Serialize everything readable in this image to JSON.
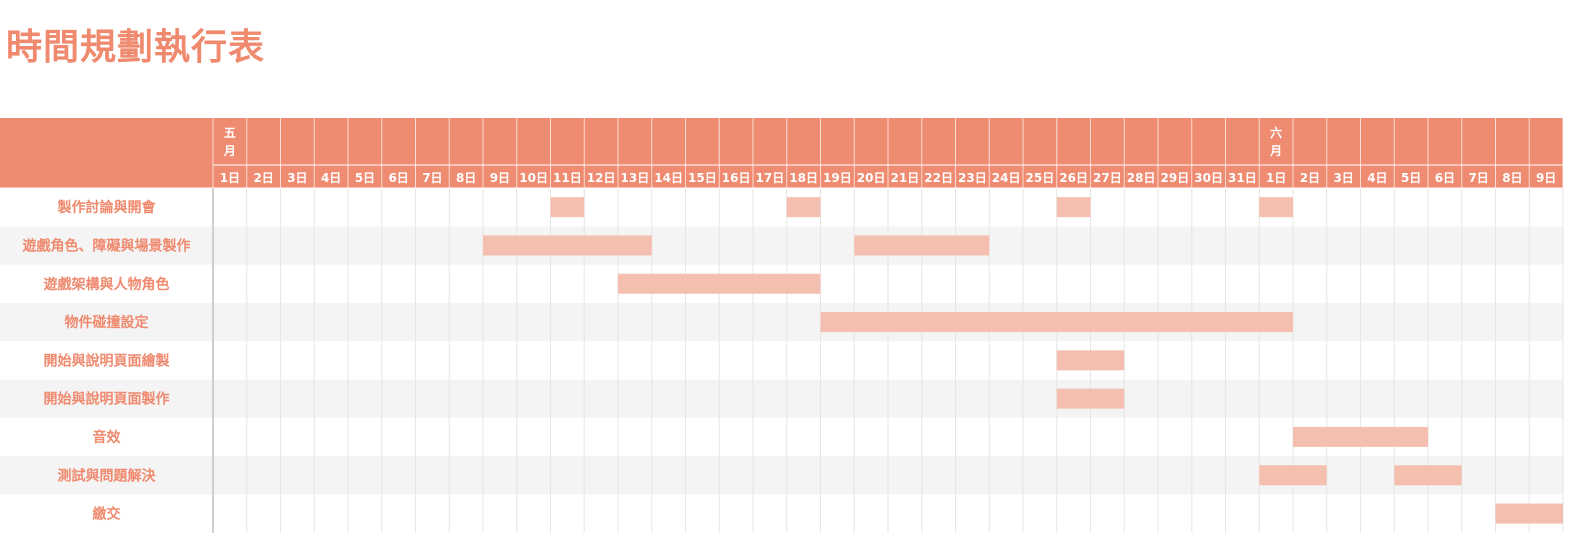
{
  "title": "時間規劃執行表",
  "colors": {
    "title": "#ef8a6f",
    "header": "#ef8b71",
    "bar": "#f5bfb0",
    "row_alt": "#f4f4f4",
    "grid": "#e6e6e6"
  },
  "chart_data": {
    "type": "gantt",
    "title": "時間規劃執行表",
    "months": [
      {
        "label_lines": [
          "五",
          "月"
        ],
        "start_index": 0
      },
      {
        "label_lines": [
          "六",
          "月"
        ],
        "start_index": 31
      }
    ],
    "days": [
      "1日",
      "2日",
      "3日",
      "4日",
      "5日",
      "6日",
      "7日",
      "8日",
      "9日",
      "10日",
      "11日",
      "12日",
      "13日",
      "14日",
      "15日",
      "16日",
      "17日",
      "18日",
      "19日",
      "20日",
      "21日",
      "22日",
      "23日",
      "24日",
      "25日",
      "26日",
      "27日",
      "28日",
      "29日",
      "30日",
      "31日",
      "1日",
      "2日",
      "3日",
      "4日",
      "5日",
      "6日",
      "7日",
      "8日",
      "9日"
    ],
    "tasks": [
      {
        "name": "製作討論與開會",
        "spans": [
          [
            10,
            10
          ],
          [
            17,
            17
          ],
          [
            25,
            25
          ],
          [
            31,
            31
          ]
        ]
      },
      {
        "name": "遊戲角色、障礙與場景製作",
        "spans": [
          [
            8,
            12
          ],
          [
            19,
            22
          ]
        ]
      },
      {
        "name": "遊戲架構與人物角色",
        "spans": [
          [
            12,
            17
          ]
        ]
      },
      {
        "name": "物件碰撞設定",
        "spans": [
          [
            18,
            31
          ]
        ]
      },
      {
        "name": "開始與說明頁面繪製",
        "spans": [
          [
            25,
            26
          ]
        ]
      },
      {
        "name": "開始與說明頁面製作",
        "spans": [
          [
            25,
            26
          ]
        ]
      },
      {
        "name": "音效",
        "spans": [
          [
            32,
            35
          ]
        ]
      },
      {
        "name": "測試與問題解決",
        "spans": [
          [
            31,
            32
          ],
          [
            35,
            36
          ]
        ]
      },
      {
        "name": "繳交",
        "spans": [
          [
            38,
            39
          ]
        ]
      }
    ]
  }
}
